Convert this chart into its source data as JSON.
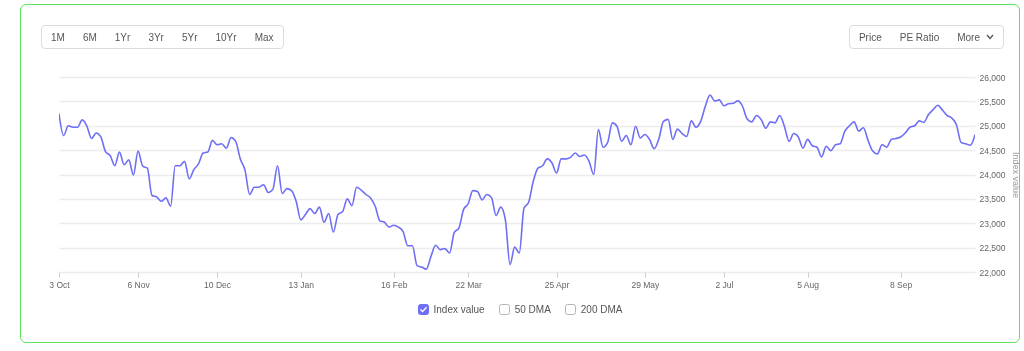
{
  "chart_data": {
    "type": "line",
    "annotations": [
      "1M",
      "6M",
      "1Yr",
      "3Yr",
      "5Yr",
      "10Yr",
      "Max",
      "Price",
      "PE Ratio",
      "More"
    ],
    "ylabel": "Index value",
    "ylim": [
      22000,
      26000
    ],
    "yticks": [
      {
        "value": 22000,
        "label": "22,000"
      },
      {
        "value": 22500,
        "label": "22,500"
      },
      {
        "value": 23000,
        "label": "23,000"
      },
      {
        "value": 23500,
        "label": "23,500"
      },
      {
        "value": 24000,
        "label": "24,000"
      },
      {
        "value": 24500,
        "label": "24,500"
      },
      {
        "value": 25000,
        "label": "25,000"
      },
      {
        "value": 25500,
        "label": "25,500"
      },
      {
        "value": 26000,
        "label": "26,000"
      }
    ],
    "grid": "y",
    "legend": "bottom",
    "categories": [
      "3 Oct",
      null,
      null,
      null,
      null,
      null,
      null,
      null,
      null,
      null,
      null,
      null,
      null,
      null,
      null,
      null,
      null,
      "6 Nov",
      null,
      null,
      null,
      null,
      null,
      null,
      null,
      null,
      null,
      null,
      null,
      null,
      null,
      null,
      null,
      null,
      "10 Dec",
      null,
      null,
      null,
      null,
      null,
      null,
      null,
      null,
      null,
      null,
      null,
      null,
      null,
      null,
      null,
      null,
      null,
      "13 Jan",
      null,
      null,
      null,
      null,
      null,
      null,
      null,
      null,
      null,
      null,
      null,
      null,
      null,
      null,
      null,
      null,
      null,
      null,
      null,
      "16 Feb",
      null,
      null,
      null,
      null,
      null,
      null,
      null,
      null,
      null,
      null,
      null,
      null,
      null,
      null,
      null,
      "22 Mar",
      null,
      null,
      null,
      null,
      null,
      null,
      null,
      null,
      null,
      null,
      null,
      null,
      null,
      null,
      null,
      null,
      null,
      null,
      "25 Apr",
      null,
      null,
      null,
      null,
      null,
      null,
      null,
      null,
      null,
      null,
      null,
      null,
      null,
      null,
      null,
      null,
      null,
      null,
      "29 May",
      null,
      null,
      null,
      null,
      null,
      null,
      null,
      null,
      null,
      null,
      null,
      null,
      null,
      null,
      null,
      null,
      "2 Jul",
      null,
      null,
      null,
      null,
      null,
      null,
      null,
      null,
      null,
      null,
      null,
      null,
      null,
      null,
      null,
      null,
      null,
      "5 Aug",
      null,
      null,
      null,
      null,
      null,
      null,
      null,
      null,
      null,
      null,
      null,
      null,
      null,
      null,
      null,
      null,
      null,
      null,
      null,
      "8 Sep",
      null,
      null,
      null,
      null,
      null,
      null,
      null,
      null,
      null,
      null,
      null,
      null,
      null,
      null,
      null,
      null
    ],
    "series": [
      {
        "name": "Index value",
        "color": "#6f6ff5",
        "values": [
          25240,
          24800,
          25000,
          24970,
          24970,
          25120,
          24990,
          24740,
          24850,
          24770,
          24470,
          24390,
          24180,
          24460,
          24200,
          24300,
          23990,
          24480,
          24170,
          24130,
          23570,
          23540,
          23450,
          23520,
          23350,
          24180,
          24180,
          24270,
          23910,
          24100,
          24220,
          24440,
          24460,
          24700,
          24610,
          24630,
          24540,
          24760,
          24680,
          24320,
          24090,
          23590,
          23740,
          23740,
          23790,
          23630,
          23700,
          24180,
          23610,
          23710,
          23670,
          23450,
          23070,
          23180,
          23300,
          23200,
          23330,
          23020,
          23200,
          22820,
          23180,
          23240,
          23500,
          23360,
          23740,
          23680,
          23590,
          23520,
          23350,
          23050,
          23020,
          22920,
          22960,
          22920,
          22830,
          22540,
          22540,
          22130,
          22100,
          22060,
          22320,
          22550,
          22460,
          22480,
          22390,
          22810,
          22900,
          23280,
          23400,
          23670,
          23650,
          23480,
          23590,
          23530,
          23160,
          23330,
          23070,
          22150,
          22510,
          22390,
          23310,
          23430,
          23860,
          24130,
          24180,
          24320,
          24240,
          24030,
          24320,
          24320,
          24350,
          24440,
          24370,
          24400,
          24270,
          24000,
          24920,
          24560,
          24660,
          25060,
          24990,
          24680,
          24800,
          24610,
          24990,
          24750,
          24820,
          24720,
          24530,
          24730,
          25090,
          25130,
          24720,
          24930,
          24840,
          24780,
          25100,
          24970,
          25090,
          25400,
          25630,
          25510,
          25530,
          25410,
          25450,
          25460,
          25510,
          25400,
          25140,
          25080,
          25210,
          25130,
          24950,
          25080,
          25060,
          25210,
          24990,
          24680,
          24840,
          24770,
          24540,
          24720,
          24590,
          24560,
          24360,
          24580,
          24490,
          24610,
          24630,
          24890,
          25000,
          25080,
          24890,
          24960,
          24700,
          24480,
          24420,
          24610,
          24560,
          24720,
          24740,
          24770,
          24850,
          24970,
          25000,
          25100,
          25070,
          25230,
          25330,
          25420,
          25320,
          25210,
          25160,
          25020,
          24660,
          24630,
          24600,
          24810
        ]
      },
      {
        "name": "50 DMA",
        "color": "#b5b5b5",
        "values": [
          null,
          null,
          null,
          null,
          null,
          null,
          null,
          null,
          null,
          null,
          null,
          null,
          null,
          null,
          null,
          null,
          null,
          null,
          null,
          null,
          null,
          null,
          null,
          null,
          null,
          null,
          null,
          null,
          null,
          null,
          null,
          null,
          null,
          null,
          null,
          null,
          null,
          null,
          null,
          null,
          null,
          null,
          null,
          null,
          null,
          null,
          null,
          null,
          null,
          null,
          null,
          null,
          null,
          null,
          null,
          null,
          null,
          null,
          null,
          null,
          null,
          null,
          null,
          null,
          null,
          null,
          null,
          null,
          null,
          null,
          null,
          null,
          null,
          null,
          null,
          null,
          null,
          null,
          null,
          null,
          null,
          null,
          null,
          null,
          null,
          null,
          null,
          null,
          null,
          null,
          null,
          null,
          null,
          null,
          null,
          null,
          null,
          null,
          null,
          null,
          null,
          null,
          null,
          null,
          null,
          null,
          null,
          null,
          null,
          null,
          null,
          null,
          null,
          null,
          null,
          null,
          null,
          null,
          null,
          null,
          null,
          null,
          null,
          null,
          null,
          null,
          null,
          null,
          null,
          null,
          null,
          null,
          null,
          null,
          null,
          null,
          null,
          null,
          null,
          null,
          null,
          null,
          null,
          null,
          null,
          null,
          null,
          null,
          null,
          null,
          null,
          null,
          null,
          null,
          null,
          null,
          null,
          null,
          null,
          null,
          null,
          null,
          null,
          null,
          null,
          null,
          null,
          null,
          null,
          null,
          null,
          null,
          null,
          null,
          null,
          null,
          null,
          null,
          null,
          null,
          null,
          null,
          null,
          null,
          null,
          null,
          null,
          null,
          null,
          null,
          null,
          null,
          null,
          null,
          null,
          null,
          null,
          null
        ]
      },
      {
        "name": "200 DMA",
        "color": "#b5b5b5",
        "values": [
          null,
          null,
          null,
          null,
          null,
          null,
          null,
          null,
          null,
          null,
          null,
          null,
          null,
          null,
          null,
          null,
          null,
          null,
          null,
          null,
          null,
          null,
          null,
          null,
          null,
          null,
          null,
          null,
          null,
          null,
          null,
          null,
          null,
          null,
          null,
          null,
          null,
          null,
          null,
          null,
          null,
          null,
          null,
          null,
          null,
          null,
          null,
          null,
          null,
          null,
          null,
          null,
          null,
          null,
          null,
          null,
          null,
          null,
          null,
          null,
          null,
          null,
          null,
          null,
          null,
          null,
          null,
          null,
          null,
          null,
          null,
          null,
          null,
          null,
          null,
          null,
          null,
          null,
          null,
          null,
          null,
          null,
          null,
          null,
          null,
          null,
          null,
          null,
          null,
          null,
          null,
          null,
          null,
          null,
          null,
          null,
          null,
          null,
          null,
          null,
          null,
          null,
          null,
          null,
          null,
          null,
          null,
          null,
          null,
          null,
          null,
          null,
          null,
          null,
          null,
          null,
          null,
          null,
          null,
          null,
          null,
          null,
          null,
          null,
          null,
          null,
          null,
          null,
          null,
          null,
          null,
          null,
          null,
          null,
          null,
          null,
          null,
          null,
          null,
          null,
          null,
          null,
          null,
          null,
          null,
          null,
          null,
          null,
          null,
          null,
          null,
          null,
          null,
          null,
          null,
          null,
          null,
          null,
          null,
          null,
          null,
          null,
          null,
          null,
          null,
          null,
          null,
          null,
          null,
          null,
          null,
          null,
          null,
          null,
          null,
          null,
          null,
          null,
          null,
          null,
          null,
          null,
          null,
          null,
          null,
          null,
          null,
          null,
          null,
          null,
          null,
          null,
          null,
          null,
          null,
          null,
          null,
          null
        ]
      }
    ]
  }
}
